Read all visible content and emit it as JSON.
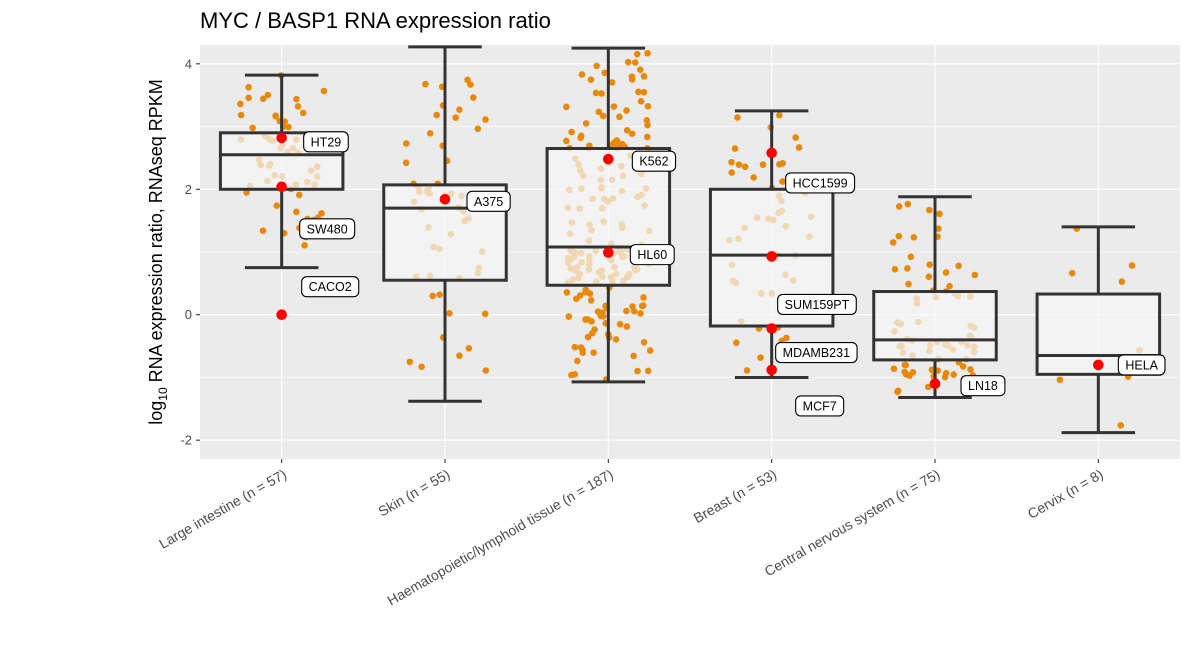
{
  "chart_data": {
    "type": "boxplot",
    "title": "MYC / BASP1 RNA expression ratio",
    "ylabel": {
      "prefix": "log",
      "subscript": "10",
      "suffix": " RNA expression ratio, RNAseq RPKM"
    },
    "ylim": [
      -2.3,
      4.3
    ],
    "yticks": [
      -2,
      0,
      2,
      4
    ],
    "grid": true,
    "categories": [
      "Large intestine (n = 57)",
      "Skin (n = 55)",
      "Haematopoietic/lymphoid tissue (n = 187)",
      "Breast (n = 53)",
      "Central nervous system (n = 75)",
      "Cervix (n = 8)"
    ],
    "boxes": [
      {
        "whisker_low": 0.75,
        "q1": 2.0,
        "median": 2.55,
        "q3": 2.9,
        "whisker_high": 3.82
      },
      {
        "whisker_low": -1.38,
        "q1": 0.55,
        "median": 1.7,
        "q3": 2.07,
        "whisker_high": 4.27
      },
      {
        "whisker_low": -1.07,
        "q1": 0.47,
        "median": 1.08,
        "q3": 2.65,
        "whisker_high": 4.25
      },
      {
        "whisker_low": -1.0,
        "q1": -0.18,
        "median": 0.95,
        "q3": 2.0,
        "whisker_high": 3.25
      },
      {
        "whisker_low": -1.32,
        "q1": -0.72,
        "median": -0.4,
        "q3": 0.37,
        "whisker_high": 1.88
      },
      {
        "whisker_low": -1.88,
        "q1": -0.95,
        "median": -0.65,
        "q3": 0.33,
        "whisker_high": 1.4
      }
    ],
    "highlighted_cell_lines": [
      {
        "label": "HT29",
        "category": 0,
        "value": 2.82
      },
      {
        "label": "SW480",
        "category": 0,
        "value": 2.04
      },
      {
        "label": "CACO2",
        "category": 0,
        "value": 0.0
      },
      {
        "label": "A375",
        "category": 1,
        "value": 1.84
      },
      {
        "label": "K562",
        "category": 2,
        "value": 2.48
      },
      {
        "label": "HL60",
        "category": 2,
        "value": 0.99
      },
      {
        "label": "HCC1599",
        "category": 3,
        "value": 2.58
      },
      {
        "label": "SUM159PT",
        "category": 3,
        "value": 0.93
      },
      {
        "label": "MDAMB231",
        "category": 3,
        "value": -0.22
      },
      {
        "label": "MCF7",
        "category": 3,
        "value": -0.88
      },
      {
        "label": "LN18",
        "category": 4,
        "value": -1.1
      },
      {
        "label": "HELA",
        "category": 5,
        "value": -0.8
      }
    ],
    "colors": {
      "panel_background": "#ebebeb",
      "grid": "#ffffff",
      "box_fill": "#f5f5f5",
      "box_stroke": "#333333",
      "point_dark": "#e8890c",
      "point_light": "#f8c77e",
      "highlight": "#ff0000"
    }
  }
}
